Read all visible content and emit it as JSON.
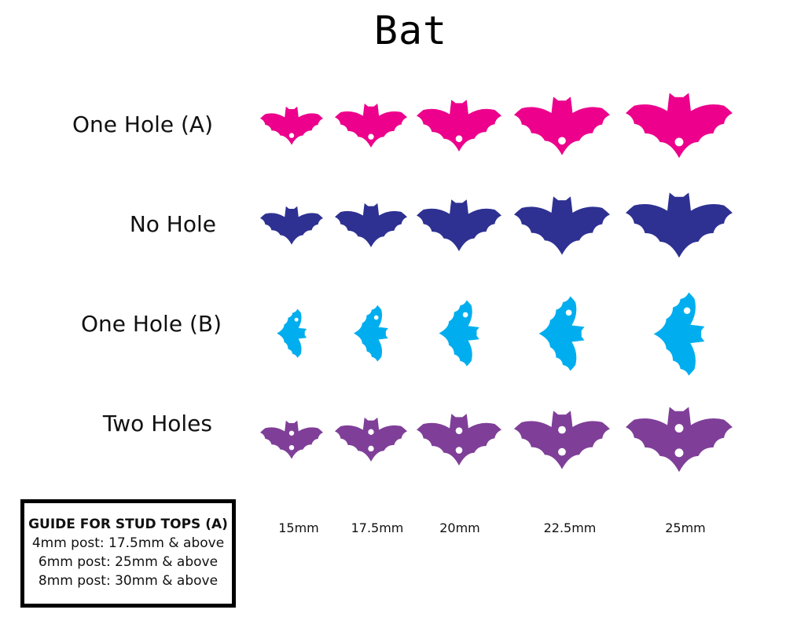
{
  "title": "Bat",
  "rows": [
    {
      "label": "One Hole (A)",
      "color": "#ec008c",
      "variant": "one-hole-a"
    },
    {
      "label": "No Hole",
      "color": "#2e3192",
      "variant": "no-hole"
    },
    {
      "label": "One Hole (B)",
      "color": "#00aeef",
      "variant": "one-hole-b"
    },
    {
      "label": "Two Holes",
      "color": "#7f3f98",
      "variant": "two-holes"
    }
  ],
  "sizes": [
    "15mm",
    "17.5mm",
    "20mm",
    "22.5mm",
    "25mm"
  ],
  "guide": {
    "heading": "GUIDE FOR STUD TOPS (A)",
    "lines": [
      "4mm post: 17.5mm & above",
      "6mm post: 25mm & above",
      "8mm post: 30mm & above"
    ]
  }
}
